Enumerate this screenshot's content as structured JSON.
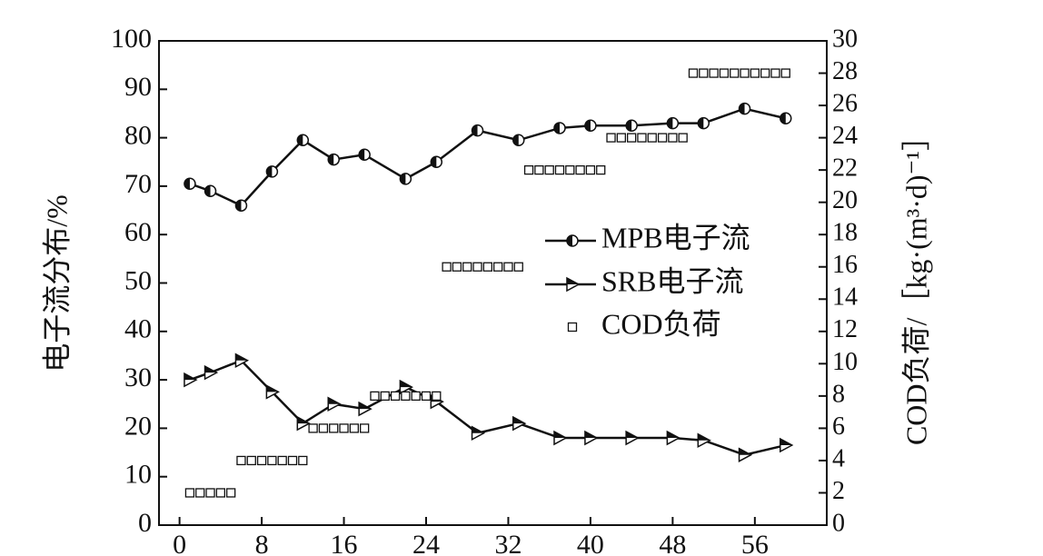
{
  "chart_data": {
    "type": "line",
    "y_label": "电子流分布/%",
    "y2_label": "COD负荷/［kg·(m³·d)⁻¹］",
    "xlim": [
      -2,
      63
    ],
    "xticks": [
      0,
      8,
      16,
      24,
      32,
      40,
      48,
      56
    ],
    "ylim": [
      0,
      100
    ],
    "yticks": [
      0,
      10,
      20,
      30,
      40,
      50,
      60,
      70,
      80,
      90,
      100
    ],
    "y2lim": [
      0,
      30
    ],
    "y2ticks": [
      0,
      2,
      4,
      6,
      8,
      10,
      12,
      14,
      16,
      18,
      20,
      22,
      24,
      26,
      28,
      30
    ],
    "series": [
      {
        "name": "MPB电子流",
        "color": "#111111",
        "marker": "circle",
        "x": [
          1,
          3,
          6,
          9,
          12,
          15,
          18,
          22,
          25,
          29,
          33,
          37,
          40,
          44,
          48,
          51,
          55,
          59
        ],
        "values": [
          70.5,
          69,
          66,
          73,
          79.5,
          75.5,
          76.5,
          71.5,
          75,
          81.5,
          79.5,
          82,
          82.5,
          82.5,
          83,
          83,
          86,
          84
        ]
      },
      {
        "name": "SRB电子流",
        "color": "#111111",
        "marker": "triangle",
        "x": [
          1,
          3,
          6,
          9,
          12,
          15,
          18,
          22,
          25,
          29,
          33,
          37,
          40,
          44,
          48,
          51,
          55,
          59
        ],
        "values": [
          30,
          31.5,
          34,
          27.5,
          21,
          25,
          24,
          28.5,
          25.5,
          19,
          21,
          18,
          18,
          18,
          18,
          17.5,
          14.5,
          16.5
        ]
      },
      {
        "name": "COD负荷",
        "color": "#111111",
        "marker": "square",
        "axis": "y2",
        "x": [
          1,
          2,
          3,
          4,
          5,
          6,
          7,
          8,
          9,
          10,
          11,
          12,
          13,
          14,
          15,
          16,
          17,
          18,
          19,
          20,
          21,
          22,
          23,
          24,
          25,
          26,
          27,
          28,
          29,
          30,
          31,
          32,
          33,
          34,
          35,
          36,
          37,
          38,
          39,
          40,
          41,
          42,
          43,
          44,
          45,
          46,
          47,
          48,
          49,
          50,
          51,
          52,
          53,
          54,
          55,
          56,
          57,
          58,
          59
        ],
        "values": [
          2,
          2,
          2,
          2,
          2,
          4,
          4,
          4,
          4,
          4,
          4,
          4,
          6,
          6,
          6,
          6,
          6,
          6,
          8,
          8,
          8,
          8,
          8,
          8,
          8,
          16,
          16,
          16,
          16,
          16,
          16,
          16,
          16,
          22,
          22,
          22,
          22,
          22,
          22,
          22,
          22,
          24,
          24,
          24,
          24,
          24,
          24,
          24,
          24,
          28,
          28,
          28,
          28,
          28,
          28,
          28,
          28,
          28,
          28
        ]
      }
    ]
  }
}
